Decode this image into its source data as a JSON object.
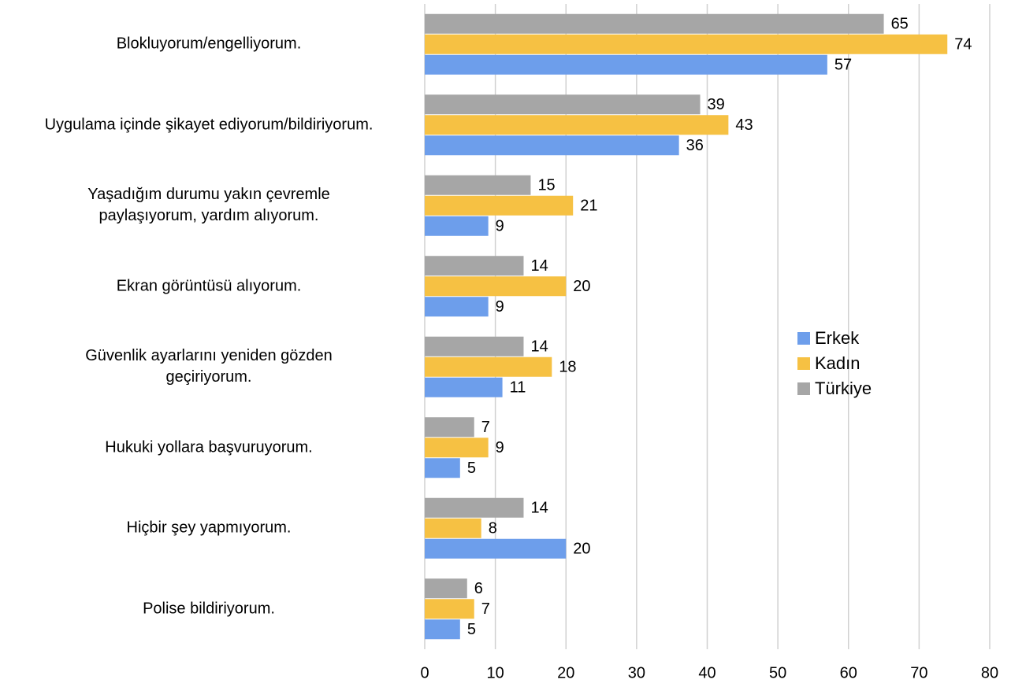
{
  "chart_data": {
    "type": "bar",
    "orientation": "horizontal",
    "categories": [
      "Blokluyorum/engelliyorum.",
      "Uygulama içinde şikayet ediyorum/bildiriyorum.",
      "Yaşadığım durumu yakın çevremle\npaylaşıyorum, yardım alıyorum.",
      "Ekran görüntüsü alıyorum.",
      "Güvenlik ayarlarını yeniden gözden\ngeçiriyorum.",
      "Hukuki yollara başvuruyorum.",
      "Hiçbir şey yapmıyorum.",
      "Polise bildiriyorum."
    ],
    "series": [
      {
        "name": "Erkek",
        "color": "#6d9eeb",
        "values": [
          57,
          36,
          9,
          9,
          11,
          5,
          20,
          5
        ]
      },
      {
        "name": "Kadın",
        "color": "#f6c143",
        "values": [
          74,
          43,
          21,
          20,
          18,
          9,
          8,
          7
        ]
      },
      {
        "name": "Türkiye",
        "color": "#a6a6a6",
        "values": [
          65,
          39,
          15,
          14,
          14,
          7,
          14,
          6
        ]
      }
    ],
    "xlim": [
      0,
      80
    ],
    "xticks": [
      0,
      10,
      20,
      30,
      40,
      50,
      60,
      70,
      80
    ],
    "grid": true,
    "legend": "right"
  }
}
